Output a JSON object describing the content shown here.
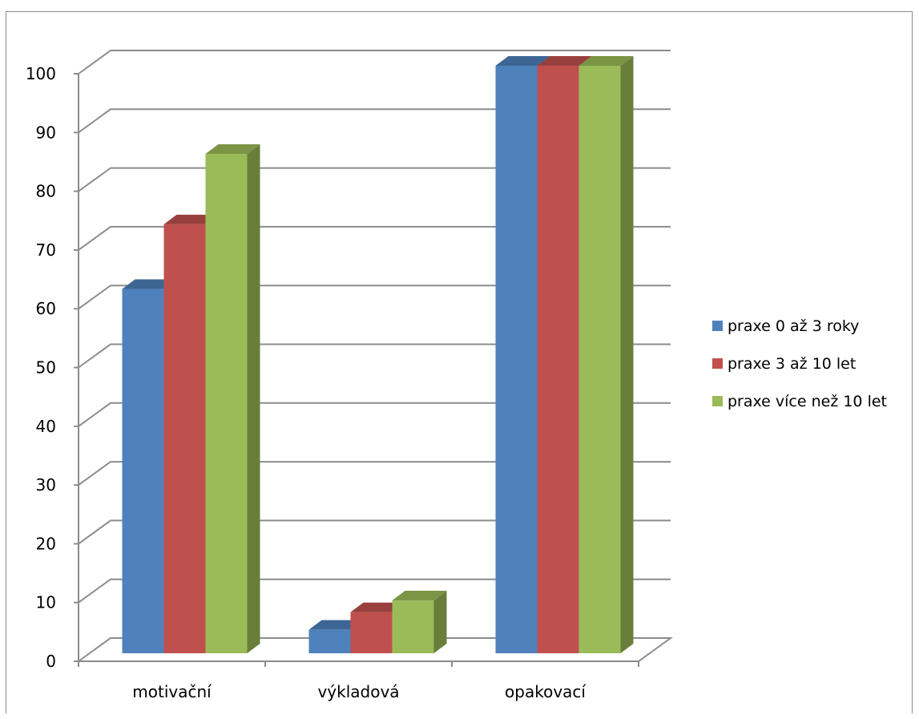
{
  "chart_data": {
    "type": "bar",
    "style": "3d-clustered-column",
    "title": "",
    "xlabel": "",
    "ylabel": "",
    "categories": [
      "motivační",
      "výkladová",
      "opakovací"
    ],
    "series": [
      {
        "name": "praxe 0 až 3 roky",
        "values": [
          62,
          4,
          100
        ],
        "color": "#4f81bd",
        "top_color": "#3d6694",
        "side_color": "#385d8a"
      },
      {
        "name": "praxe 3 až 10 let",
        "values": [
          73,
          7,
          100
        ],
        "color": "#c0504d",
        "top_color": "#98403d",
        "side_color": "#8c3b38"
      },
      {
        "name": "praxe více než 10 let",
        "values": [
          85,
          9,
          100
        ],
        "color": "#9bbb59",
        "top_color": "#7b9446",
        "side_color": "#6a7e3b"
      }
    ],
    "ylim": [
      0,
      100
    ],
    "yticks": [
      "0",
      "10",
      "20",
      "30",
      "40",
      "50",
      "60",
      "70",
      "80",
      "90",
      "100"
    ],
    "grid": true,
    "legend_position": "right",
    "gridline_color": "#8c8c8c"
  }
}
